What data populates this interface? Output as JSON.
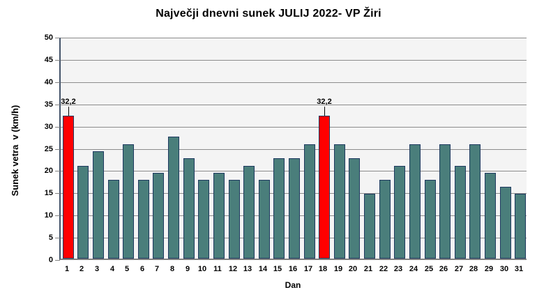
{
  "title": "Največji dnevni sunek JULIJ 2022- VP Žiri",
  "colors": {
    "bar_fill": "#4A7E7B",
    "bar_border": "#1F3A60",
    "highlight_fill": "#FF0000",
    "plot_background": "#F4F4F4",
    "gridline": "#8C8C8C",
    "y_axis_line": "#44546A",
    "x_axis_line": "#808080",
    "text": "#000000"
  },
  "chart_data": {
    "type": "bar",
    "title": "Največji dnevni sunek JULIJ 2022- VP Žiri",
    "xlabel": "Dan",
    "ylabel": "Sunek vetra  v (km/h)",
    "ylim": [
      0,
      50
    ],
    "ytick_step": 5,
    "yticks": [
      0,
      5,
      10,
      15,
      20,
      25,
      30,
      35,
      40,
      45,
      50
    ],
    "grid": "horizontal",
    "legend": false,
    "categories": [
      "1",
      "2",
      "3",
      "4",
      "5",
      "6",
      "7",
      "8",
      "9",
      "10",
      "11",
      "12",
      "13",
      "14",
      "15",
      "16",
      "17",
      "18",
      "19",
      "20",
      "21",
      "22",
      "23",
      "24",
      "25",
      "26",
      "27",
      "28",
      "29",
      "30",
      "31"
    ],
    "values": [
      32.2,
      20.9,
      24.1,
      17.7,
      25.7,
      17.7,
      19.3,
      27.4,
      22.5,
      17.7,
      19.3,
      17.7,
      20.9,
      17.7,
      22.5,
      22.5,
      25.7,
      32.2,
      25.7,
      22.5,
      14.5,
      17.7,
      20.9,
      25.7,
      17.7,
      25.7,
      20.9,
      25.7,
      19.3,
      16.1,
      14.5
    ],
    "highlighted_indices": [
      0,
      17
    ],
    "data_labels": [
      {
        "index": 0,
        "text": "32,2"
      },
      {
        "index": 17,
        "text": "32,2"
      }
    ]
  }
}
